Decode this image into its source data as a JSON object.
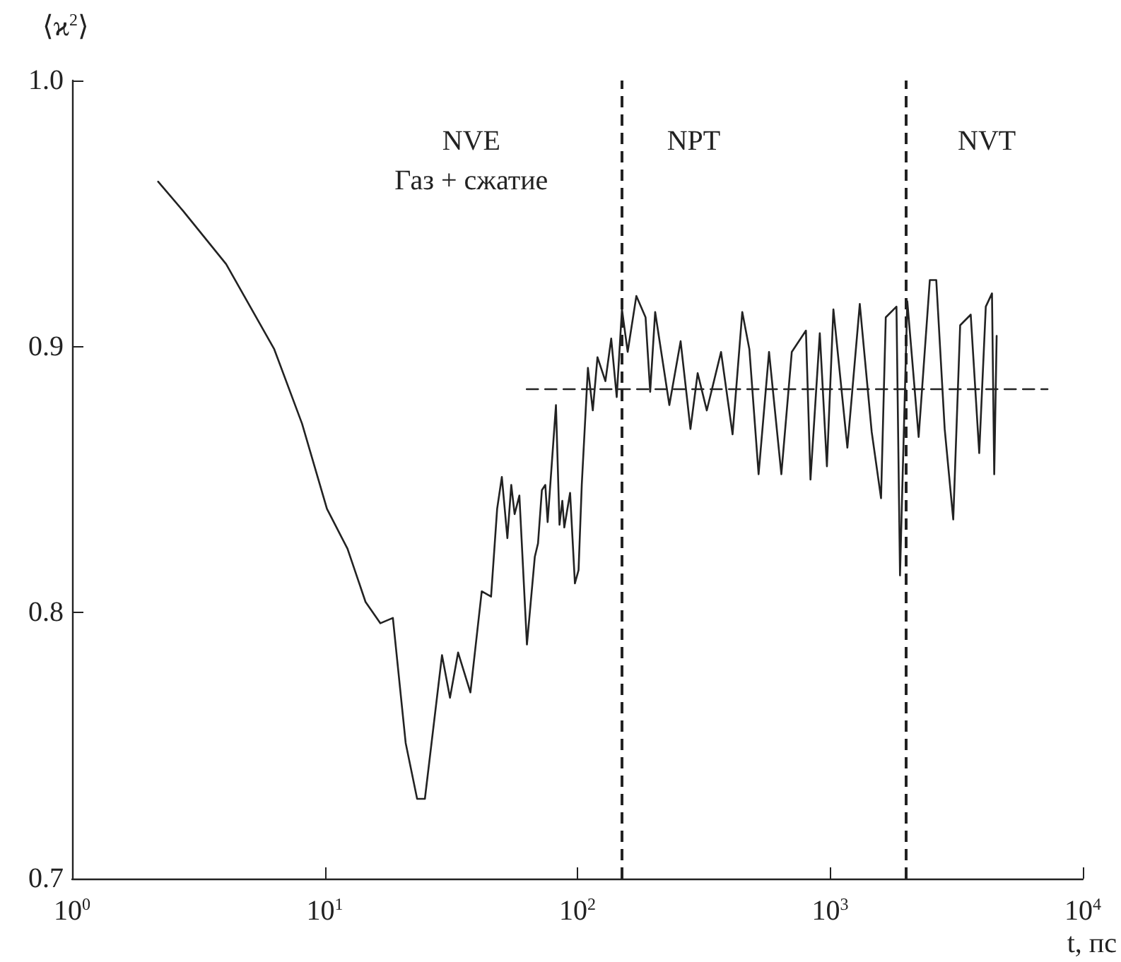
{
  "chart_data": {
    "type": "line",
    "xlabel": "t, пс",
    "ylabel": "⟨ϰ$^{2}$⟩",
    "annotations": [
      "NVE",
      "Газ + сжатие",
      "NPT",
      "NVT"
    ],
    "log": "x",
    "grid": false,
    "marker": "none",
    "xlim": [
      1,
      10000
    ],
    "xticks": [
      {
        "value": 1,
        "label": "10$^{0}$"
      },
      {
        "value": 10,
        "label": "10$^{1}$"
      },
      {
        "value": 100,
        "label": "10$^{2}$"
      },
      {
        "value": 1000,
        "label": "10$^{3}$"
      },
      {
        "value": 10000,
        "label": "10$^{4}$"
      }
    ],
    "ylim": [
      0.7,
      1.0
    ],
    "yticks": [
      {
        "value": 0.7,
        "label": "0.7"
      },
      {
        "value": 0.8,
        "label": "0.8"
      },
      {
        "value": 0.9,
        "label": "0.9"
      },
      {
        "value": 1.0,
        "label": "1.0"
      }
    ],
    "ref_lines": [
      {
        "axis": "x",
        "value": 150,
        "color": "#222222",
        "line_style": "dashed"
      },
      {
        "axis": "x",
        "value": 2000,
        "color": "#222222",
        "line_style": "dashed"
      }
    ],
    "series": [
      {
        "color": "#222222",
        "line_style": "solid",
        "x": [
          2.19,
          2.75,
          4.07,
          6.31,
          8.13,
          10.2,
          12.3,
          14.5,
          16.6,
          18.6,
          20.9,
          23.2,
          24.9,
          29.1,
          31.3,
          33.7,
          37.7,
          41.8,
          45.5,
          48.1,
          50.2,
          52.8,
          54.7,
          56.4,
          58.9,
          63.1,
          67.8,
          69.8,
          72.3,
          74.6,
          76.2,
          82.2,
          84.9,
          87.1,
          88.7,
          93.5,
          97.7,
          101,
          104,
          110,
          115,
          120,
          129,
          136,
          143,
          150,
          158,
          171,
          186,
          194,
          203,
          231,
          256,
          280,
          299,
          325,
          370,
          411,
          449,
          479,
          521,
          573,
          641,
          705,
          802,
          836,
          910,
          971,
          1030,
          1170,
          1310,
          1460,
          1590,
          1660,
          1830,
          1890,
          2020,
          2240,
          2480,
          2630,
          2840,
          3070,
          3270,
          3600,
          3890,
          4130,
          4370,
          4460,
          4560
        ],
        "values": [
          0.962,
          0.951,
          0.931,
          0.899,
          0.871,
          0.839,
          0.824,
          0.804,
          0.796,
          0.798,
          0.751,
          0.73,
          0.73,
          0.784,
          0.768,
          0.785,
          0.77,
          0.808,
          0.806,
          0.839,
          0.851,
          0.828,
          0.848,
          0.837,
          0.844,
          0.788,
          0.821,
          0.826,
          0.846,
          0.848,
          0.834,
          0.878,
          0.833,
          0.842,
          0.832,
          0.845,
          0.811,
          0.816,
          0.848,
          0.892,
          0.876,
          0.896,
          0.887,
          0.903,
          0.881,
          0.914,
          0.898,
          0.919,
          0.911,
          0.883,
          0.913,
          0.878,
          0.902,
          0.869,
          0.89,
          0.876,
          0.898,
          0.867,
          0.913,
          0.899,
          0.852,
          0.898,
          0.852,
          0.898,
          0.906,
          0.85,
          0.905,
          0.855,
          0.914,
          0.862,
          0.916,
          0.868,
          0.843,
          0.911,
          0.915,
          0.814,
          0.917,
          0.866,
          0.925,
          0.925,
          0.869,
          0.835,
          0.908,
          0.912,
          0.86,
          0.915,
          0.92,
          0.852,
          0.904
        ]
      },
      {
        "color": "#222222",
        "line_style": "dashed",
        "x": [
          63,
          7250
        ],
        "values": [
          0.884,
          0.884
        ]
      }
    ]
  }
}
